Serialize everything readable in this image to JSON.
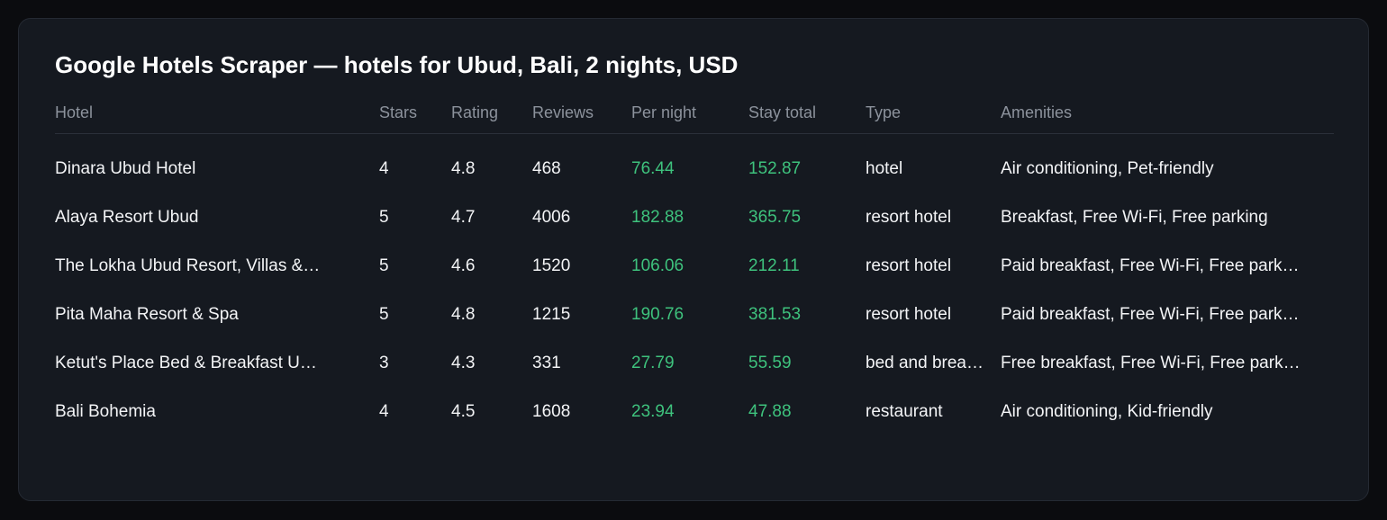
{
  "title": "Google Hotels Scraper — hotels for Ubud, Bali, 2 nights, USD",
  "columns": {
    "hotel": "Hotel",
    "stars": "Stars",
    "rating": "Rating",
    "reviews": "Reviews",
    "per_night": "Per night",
    "stay_total": "Stay total",
    "type": "Type",
    "amenities": "Amenities"
  },
  "colors": {
    "price": "#3ec27d",
    "background": "#0b0c0f",
    "card": "#151920"
  },
  "rows": [
    {
      "hotel": "Dinara Ubud Hotel",
      "stars": "4",
      "rating": "4.8",
      "reviews": "468",
      "per_night": "76.44",
      "stay_total": "152.87",
      "type": "hotel",
      "amenities": "Air conditioning, Pet-friendly"
    },
    {
      "hotel": "Alaya Resort Ubud",
      "stars": "5",
      "rating": "4.7",
      "reviews": "4006",
      "per_night": "182.88",
      "stay_total": "365.75",
      "type": "resort hotel",
      "amenities": "Breakfast, Free Wi-Fi, Free parking"
    },
    {
      "hotel": "The Lokha Ubud Resort, Villas &…",
      "stars": "5",
      "rating": "4.6",
      "reviews": "1520",
      "per_night": "106.06",
      "stay_total": "212.11",
      "type": "resort hotel",
      "amenities": "Paid breakfast, Free Wi-Fi, Free park…"
    },
    {
      "hotel": "Pita Maha Resort & Spa",
      "stars": "5",
      "rating": "4.8",
      "reviews": "1215",
      "per_night": "190.76",
      "stay_total": "381.53",
      "type": "resort hotel",
      "amenities": "Paid breakfast, Free Wi-Fi, Free park…"
    },
    {
      "hotel": "Ketut's Place Bed & Breakfast U…",
      "stars": "3",
      "rating": "4.3",
      "reviews": "331",
      "per_night": "27.79",
      "stay_total": "55.59",
      "type": "bed and brea…",
      "amenities": "Free breakfast, Free Wi-Fi, Free park…"
    },
    {
      "hotel": "Bali Bohemia",
      "stars": "4",
      "rating": "4.5",
      "reviews": "1608",
      "per_night": "23.94",
      "stay_total": "47.88",
      "type": "restaurant",
      "amenities": "Air conditioning, Kid-friendly"
    }
  ]
}
